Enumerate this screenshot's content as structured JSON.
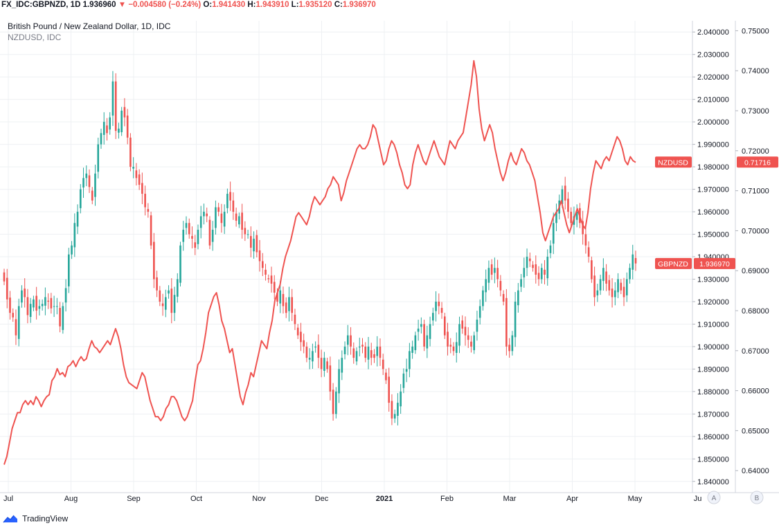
{
  "header": {
    "symbol": "FX_IDC:GBPNZD, 1D",
    "last": "1.936960",
    "change": "−0.004580 (−0.24%)",
    "o_label": "O:",
    "o_value": "1.941430",
    "h_label": "H:",
    "h_value": "1.943910",
    "l_label": "L:",
    "l_value": "1.935120",
    "c_label": "C:",
    "c_value": "1.936970",
    "down_arrow": "▼"
  },
  "legend": {
    "main": "British Pound / New Zealand Dollar, 1D, IDC",
    "overlay": "NZDUSD, IDC"
  },
  "footer": {
    "brand": "TradingView",
    "logo_icon": "tradingview-logo-icon"
  },
  "chart_data": {
    "type": "line",
    "x_axis": {
      "ticks": [
        "Jul",
        "Aug",
        "Sep",
        "Oct",
        "Nov",
        "Dec",
        "2021",
        "Feb",
        "Mar",
        "Apr",
        "May",
        "Ju"
      ]
    },
    "y_axis_a": {
      "label": "A",
      "range": [
        1.835,
        2.045
      ],
      "ticks": [
        "1.840000",
        "1.850000",
        "1.860000",
        "1.870000",
        "1.880000",
        "1.890000",
        "1.900000",
        "1.910000",
        "1.920000",
        "1.930000",
        "1.940000",
        "1.950000",
        "1.960000",
        "1.970000",
        "1.980000",
        "1.990000",
        "2.000000",
        "2.010000",
        "2.020000",
        "2.030000",
        "2.040000"
      ]
    },
    "y_axis_b": {
      "label": "B",
      "range": [
        0.6345,
        0.7525
      ],
      "ticks": [
        "0.64000",
        "0.65000",
        "0.66000",
        "0.67000",
        "0.68000",
        "0.69000",
        "0.70000",
        "0.71000",
        "0.72000",
        "0.73000",
        "0.74000",
        "0.75000"
      ]
    },
    "grid": true,
    "colors": {
      "up": "#26a69a",
      "down": "#ef5350",
      "line": "#ef5350",
      "grid": "#eef0f3",
      "axis_text": "#131722"
    },
    "series": [
      {
        "name": "GBPNZD",
        "kind": "candlestick",
        "axis": "A",
        "last_label": "1.936970",
        "close": [
          1.929,
          1.921,
          1.915,
          1.913,
          1.905,
          1.918,
          1.925,
          1.922,
          1.914,
          1.919,
          1.921,
          1.916,
          1.918,
          1.919,
          1.922,
          1.92,
          1.917,
          1.918,
          1.918,
          1.909,
          1.918,
          1.926,
          1.941,
          1.945,
          1.955,
          1.96,
          1.97,
          1.975,
          1.977,
          1.971,
          1.965,
          1.977,
          1.99,
          1.995,
          2.0,
          1.995,
          2.002,
          2.018,
          1.996,
          1.997,
          2.005,
          2.002,
          1.993,
          1.98,
          1.98,
          1.975,
          1.972,
          1.968,
          1.962,
          1.96,
          1.945,
          1.93,
          1.925,
          1.92,
          1.918,
          1.922,
          1.925,
          1.915,
          1.923,
          1.93,
          1.945,
          1.952,
          1.955,
          1.95,
          1.948,
          1.944,
          1.952,
          1.958,
          1.96,
          1.958,
          1.945,
          1.952,
          1.962,
          1.96,
          1.955,
          1.96,
          1.968,
          1.965,
          1.96,
          1.956,
          1.958,
          1.952,
          1.95,
          1.95,
          1.944,
          1.948,
          1.942,
          1.938,
          1.935,
          1.932,
          1.93,
          1.928,
          1.924,
          1.92,
          1.925,
          1.918,
          1.915,
          1.922,
          1.915,
          1.91,
          1.905,
          1.902,
          1.9,
          1.895,
          1.895,
          1.898,
          1.9,
          1.895,
          1.89,
          1.895,
          1.89,
          1.88,
          1.87,
          1.88,
          1.89,
          1.895,
          1.9,
          1.905,
          1.9,
          1.895,
          1.898,
          1.9,
          1.9,
          1.895,
          1.9,
          1.895,
          1.895,
          1.9,
          1.895,
          1.89,
          1.885,
          1.875,
          1.868,
          1.87,
          1.875,
          1.88,
          1.888,
          1.89,
          1.898,
          1.9,
          1.905,
          1.908,
          1.91,
          1.9,
          1.905,
          1.91,
          1.915,
          1.92,
          1.918,
          1.915,
          1.905,
          1.9,
          1.9,
          1.898,
          1.902,
          1.91,
          1.908,
          1.905,
          1.903,
          1.9,
          1.905,
          1.912,
          1.918,
          1.925,
          1.93,
          1.935,
          1.932,
          1.935,
          1.93,
          1.925,
          1.92,
          1.9,
          1.898,
          1.905,
          1.92,
          1.925,
          1.93,
          1.935,
          1.94,
          1.938,
          1.935,
          1.932,
          1.93,
          1.935,
          1.932,
          1.94,
          1.945,
          1.955,
          1.96,
          1.965,
          1.97,
          1.965,
          1.96,
          1.955,
          1.958,
          1.96,
          1.955,
          1.95,
          1.945,
          1.94,
          1.93,
          1.922,
          1.925,
          1.93,
          1.935,
          1.928,
          1.925,
          1.922,
          1.925,
          1.93,
          1.925,
          1.922,
          1.93,
          1.935,
          1.941,
          1.937
        ],
        "high_low_spread": 0.006
      },
      {
        "name": "NZDUSD",
        "kind": "line",
        "axis": "B",
        "last_label": "0.71716",
        "values": [
          0.6415,
          0.6435,
          0.647,
          0.6505,
          0.6525,
          0.6545,
          0.6545,
          0.6565,
          0.6575,
          0.6565,
          0.6575,
          0.6565,
          0.6585,
          0.6575,
          0.656,
          0.6575,
          0.6585,
          0.659,
          0.6625,
          0.6635,
          0.6655,
          0.664,
          0.6645,
          0.6635,
          0.666,
          0.6665,
          0.6675,
          0.666,
          0.6675,
          0.6685,
          0.6675,
          0.668,
          0.6705,
          0.6725,
          0.671,
          0.6705,
          0.6695,
          0.6705,
          0.6715,
          0.6725,
          0.6715,
          0.6735,
          0.6755,
          0.6735,
          0.6705,
          0.6665,
          0.6635,
          0.662,
          0.6615,
          0.661,
          0.6605,
          0.6625,
          0.6645,
          0.6635,
          0.6605,
          0.6575,
          0.6555,
          0.6535,
          0.6535,
          0.6525,
          0.6535,
          0.6555,
          0.6565,
          0.6585,
          0.6585,
          0.6575,
          0.6555,
          0.6535,
          0.6525,
          0.6535,
          0.6555,
          0.6575,
          0.6625,
          0.6665,
          0.6675,
          0.6705,
          0.6745,
          0.6795,
          0.6815,
          0.6835,
          0.6845,
          0.6815,
          0.6775,
          0.6755,
          0.6725,
          0.6695,
          0.6705,
          0.6665,
          0.6625,
          0.6585,
          0.6565,
          0.6595,
          0.6615,
          0.6645,
          0.6635,
          0.6665,
          0.6695,
          0.6725,
          0.6715,
          0.6705,
          0.6745,
          0.6775,
          0.6825,
          0.6845,
          0.6865,
          0.6905,
          0.6935,
          0.6955,
          0.6975,
          0.7005,
          0.7035,
          0.7045,
          0.7035,
          0.7025,
          0.7015,
          0.7035,
          0.7065,
          0.7085,
          0.7075,
          0.7065,
          0.7075,
          0.7085,
          0.7105,
          0.7115,
          0.7135,
          0.7125,
          0.7115,
          0.7075,
          0.7095,
          0.7125,
          0.7145,
          0.7165,
          0.7185,
          0.7205,
          0.7215,
          0.7205,
          0.7205,
          0.7215,
          0.7235,
          0.7265,
          0.7255,
          0.7225,
          0.7195,
          0.7165,
          0.7175,
          0.7205,
          0.7225,
          0.7215,
          0.7195,
          0.7165,
          0.7145,
          0.7115,
          0.7105,
          0.7115,
          0.7165,
          0.7195,
          0.7215,
          0.7195,
          0.7175,
          0.7165,
          0.7185,
          0.7205,
          0.7225,
          0.7205,
          0.7185,
          0.7175,
          0.7165,
          0.7195,
          0.7225,
          0.7215,
          0.7205,
          0.7225,
          0.7235,
          0.7245,
          0.7285,
          0.7325,
          0.7365,
          0.7425,
          0.7385,
          0.7305,
          0.7255,
          0.7225,
          0.7245,
          0.7265,
          0.7245,
          0.7205,
          0.7175,
          0.7145,
          0.7125,
          0.7145,
          0.7175,
          0.7195,
          0.7175,
          0.7165,
          0.7185,
          0.7205,
          0.7195,
          0.7175,
          0.7165,
          0.7145,
          0.7125,
          0.7085,
          0.7045,
          0.6995,
          0.6975,
          0.6995,
          0.7015,
          0.7035,
          0.7045,
          0.7055,
          0.7075,
          0.7045,
          0.7015,
          0.6995,
          0.7015,
          0.7035,
          0.7055,
          0.7035,
          0.7015,
          0.7005,
          0.7045,
          0.7105,
          0.7145,
          0.7175,
          0.7165,
          0.7155,
          0.7175,
          0.7185,
          0.7175,
          0.7195,
          0.7215,
          0.7235,
          0.7225,
          0.7205,
          0.7175,
          0.7165,
          0.7185,
          0.7175,
          0.7171
        ]
      }
    ]
  }
}
